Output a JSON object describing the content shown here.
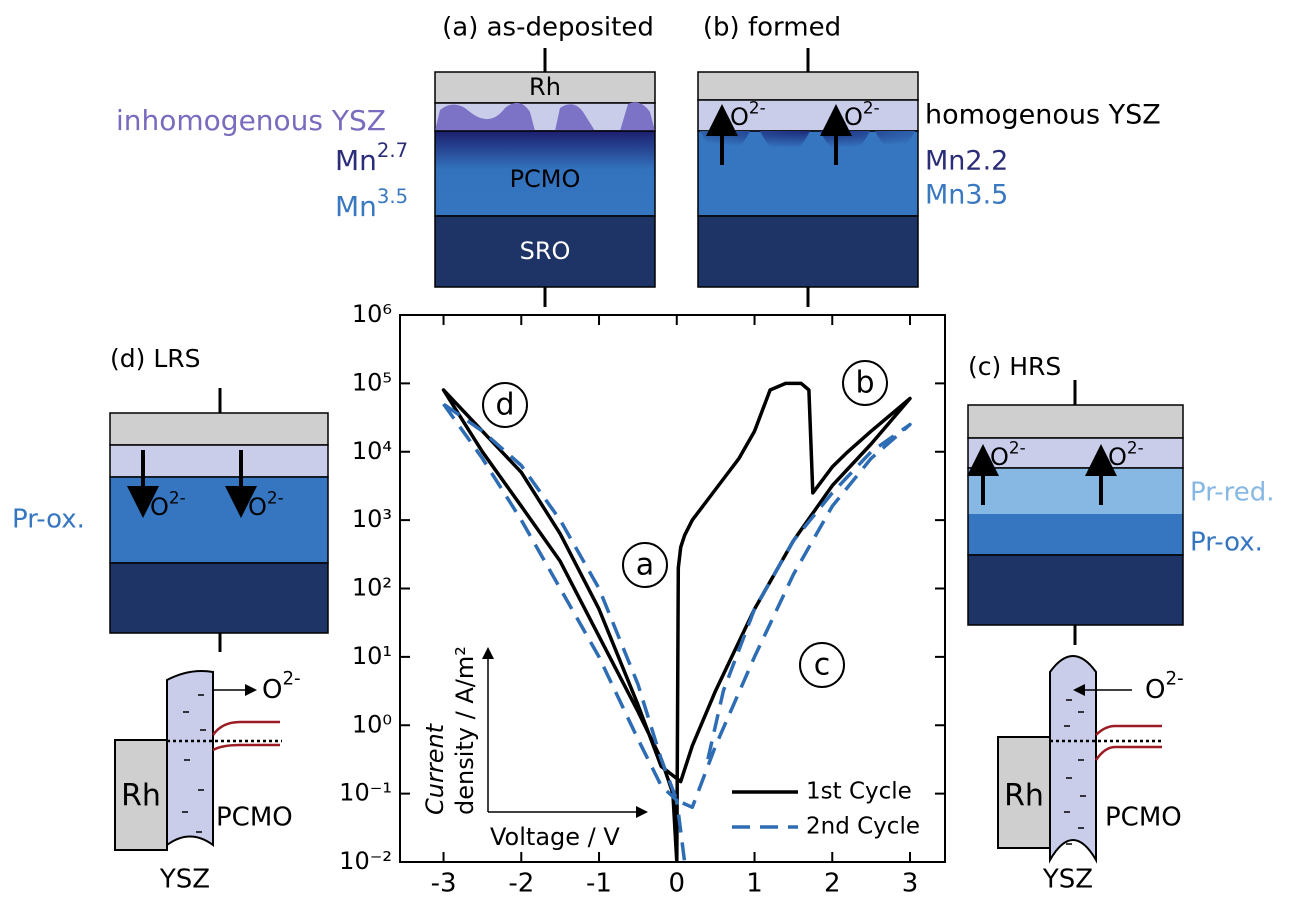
{
  "chart_data": {
    "type": "line",
    "log_y": true,
    "y_label": [
      "Current",
      "density / A/m²"
    ],
    "x_label": "Voltage / V",
    "xlim": [
      -3.56,
      3.45
    ],
    "xticks": [
      -3,
      -2,
      -1,
      0,
      1,
      2,
      3
    ],
    "ylim": [
      0.01,
      1000000
    ],
    "yticks": [
      {
        "value": 0.01,
        "label": "10⁻²"
      },
      {
        "value": 0.1,
        "label": "10⁻¹"
      },
      {
        "value": 1,
        "label": "10⁰"
      },
      {
        "value": 10,
        "label": "10¹"
      },
      {
        "value": 100,
        "label": "10²"
      },
      {
        "value": 1000,
        "label": "10³"
      },
      {
        "value": 10000,
        "label": "10⁴"
      },
      {
        "value": 100000,
        "label": "10⁵"
      },
      {
        "value": 1000000,
        "label": "10⁶"
      }
    ],
    "legend": "lower right",
    "annotations": [
      "a",
      "b",
      "c",
      "d"
    ],
    "series": [
      {
        "name": "1st Cycle",
        "color": "#000000",
        "dash": false,
        "x": [
          0,
          0.02,
          0.05,
          0.1,
          0.2,
          0.4,
          0.6,
          0.8,
          1.0,
          1.2,
          1.4,
          1.6,
          1.7,
          1.75,
          2.0,
          2.2,
          2.5,
          3.0,
          2.5,
          2.0,
          1.5,
          1.0,
          0.5,
          0.2,
          0.05,
          -0.2,
          -0.5,
          -1,
          -1.5,
          -2,
          -2.5,
          -3,
          -2.5,
          -2,
          -1.5,
          -1,
          -0.5,
          -0.2,
          -0.05,
          0
        ],
        "values": [
          0.01,
          200.0,
          400.0,
          600.0,
          1000.0,
          2000.0,
          4000.0,
          8000.0,
          20000.0,
          80000.0,
          100000.0,
          100000.0,
          80000.0,
          2500.0,
          6000.0,
          10000.0,
          20000.0,
          60000.0,
          13000.0,
          3200.0,
          500.0,
          50.0,
          3.2,
          0.5,
          0.15,
          0.25,
          2.0,
          50.0,
          630.0,
          5000.0,
          20000.0,
          80000.0,
          10000.0,
          1600.0,
          250.0,
          20.0,
          1.6,
          0.32,
          0.1,
          0.01
        ]
      },
      {
        "name": "2nd Cycle",
        "color": "#2e6db4",
        "dash": true,
        "x": [
          -3,
          -2.5,
          -2,
          -1.5,
          -1,
          -0.5,
          -0.2,
          0,
          0.1,
          0.2,
          0.4,
          0.6,
          1,
          1.5,
          2,
          2.5,
          3,
          2.5,
          2,
          1.5,
          1,
          0.5,
          0.2,
          0,
          -0.2,
          -0.5,
          -1,
          -1.5,
          -2,
          -2.5,
          -3
        ],
        "values": [
          50000.0,
          8000.0,
          1000.0,
          100.0,
          10.0,
          0.63,
          0.13,
          0.08,
          0.01,
          null,
          0.32,
          3.2,
          50.0,
          500.0,
          2500.0,
          10000.0,
          25000.0,
          8000.0,
          1600.0,
          160.0,
          10.0,
          0.5,
          0.063,
          0.08,
          0.32,
          4.0,
          100.0,
          1000.0,
          6300.0,
          20000.0,
          50000.0
        ]
      }
    ]
  },
  "panels": [
    {
      "title": "(a) as-deposited",
      "layers": [
        "Rh",
        "PCMO",
        "SRO"
      ],
      "side_labels": [
        "inhomogenous YSZ",
        {
          "base": "Mn",
          "sup": "2.7"
        },
        {
          "base": "Mn",
          "sup": "3.5"
        }
      ]
    },
    {
      "title": "(b) formed",
      "ions": [
        {
          "base": "O",
          "sup": "2-"
        },
        {
          "base": "O",
          "sup": "2-"
        }
      ],
      "side_labels": [
        "homogenous YSZ",
        "Mn2.2",
        "Mn3.5"
      ]
    },
    {
      "title": "(c) HRS",
      "ions": [
        {
          "base": "O",
          "sup": "2-"
        },
        {
          "base": "O",
          "sup": "2-"
        }
      ],
      "side_labels": [
        "Pr-red.",
        "Pr-ox."
      ]
    },
    {
      "title": "(d) LRS",
      "ions": [
        {
          "base": "O",
          "sup": "2-"
        },
        {
          "base": "O",
          "sup": "2-"
        }
      ],
      "side_labels": [
        "Pr-ox."
      ]
    }
  ],
  "band_diagrams": [
    {
      "ion": {
        "base": "O",
        "sup": "2-"
      },
      "metal": "Rh",
      "oxide": "PCMO",
      "insulator": "YSZ"
    },
    {
      "ion": {
        "base": "O",
        "sup": "2-"
      },
      "metal": "Rh",
      "oxide": "PCMO",
      "insulator": "YSZ"
    }
  ]
}
